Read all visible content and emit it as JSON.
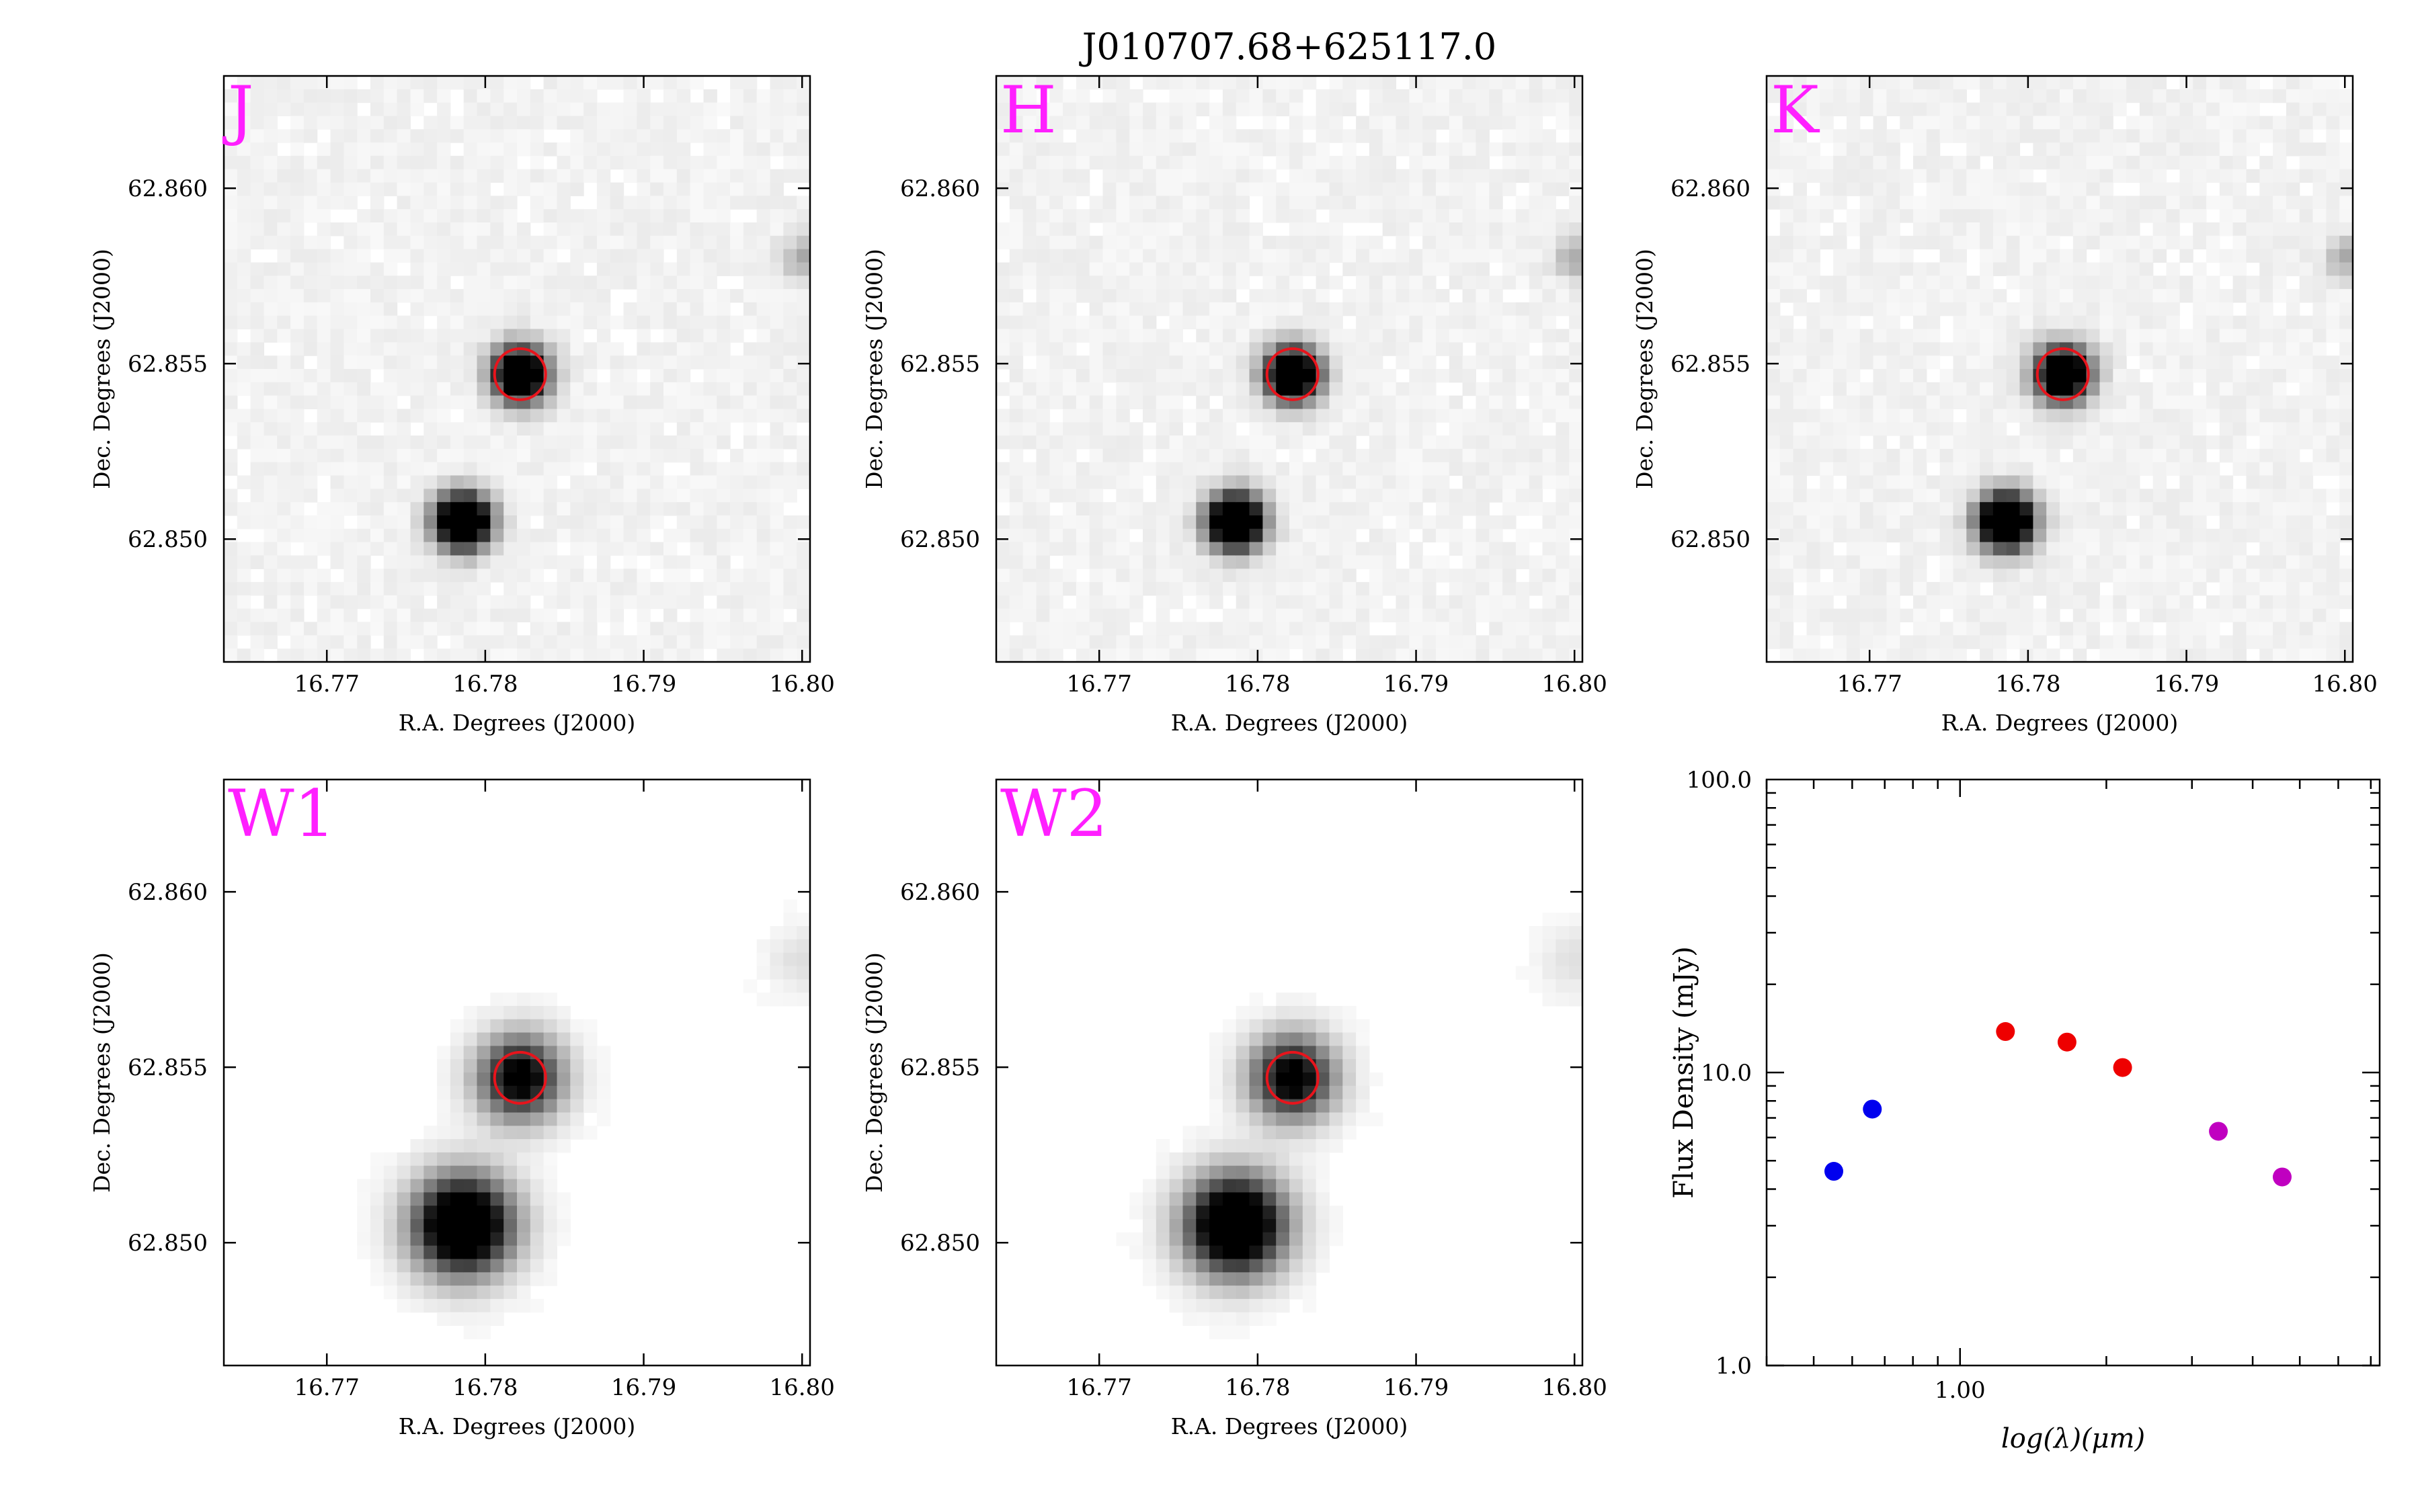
{
  "title": "J010707.68+625117.0",
  "colors": {
    "band_label": "#ff1fff",
    "aperture": "#e8141c",
    "sed_blue": "#0000ee",
    "sed_red": "#ee0000",
    "sed_magenta": "#c000c0"
  },
  "image_axes": {
    "xlabel": "R.A. Degrees (J2000)",
    "ylabel": "Dec. Degrees (J2000)",
    "xlim": [
      16.7635,
      16.8005
    ],
    "ylim": [
      62.8465,
      62.8632
    ],
    "xticks": [
      {
        "value": 16.77,
        "label": "16.77"
      },
      {
        "value": 16.78,
        "label": "16.78"
      },
      {
        "value": 16.79,
        "label": "16.79"
      },
      {
        "value": 16.8,
        "label": "16.80"
      }
    ],
    "yticks": [
      {
        "value": 62.85,
        "label": "62.850"
      },
      {
        "value": 62.855,
        "label": "62.855"
      },
      {
        "value": 62.86,
        "label": "62.860"
      }
    ]
  },
  "panels": [
    {
      "band": "J",
      "type": "nir"
    },
    {
      "band": "H",
      "type": "nir"
    },
    {
      "band": "K",
      "type": "nir"
    },
    {
      "band": "W1",
      "type": "wise"
    },
    {
      "band": "W2",
      "type": "wise"
    }
  ],
  "sources": {
    "target": {
      "ra": 16.7822,
      "dec": 62.8547
    },
    "neighbor": {
      "ra": 16.7786,
      "dec": 62.8505
    }
  },
  "chart_data": {
    "type": "scatter",
    "title": "",
    "xlabel": "log(λ)(μm)",
    "ylabel": "Flux Density (mJy)",
    "xscale": "log",
    "yscale": "log",
    "xlim": [
      0.4,
      7.3
    ],
    "ylim": [
      1.0,
      100.0
    ],
    "xtick_labels": [
      {
        "value": 1.0,
        "label": "1.00"
      }
    ],
    "ytick_labels": [
      {
        "value": 1.0,
        "label": "1.0"
      },
      {
        "value": 10.0,
        "label": "10.0"
      },
      {
        "value": 100.0,
        "label": "100.0"
      }
    ],
    "series": [
      {
        "color": "#0000ee",
        "points": [
          {
            "x": 0.55,
            "y": 4.6
          },
          {
            "x": 0.66,
            "y": 7.5
          }
        ]
      },
      {
        "color": "#ee0000",
        "points": [
          {
            "x": 1.24,
            "y": 13.8
          },
          {
            "x": 1.66,
            "y": 12.7
          },
          {
            "x": 2.16,
            "y": 10.4
          }
        ]
      },
      {
        "color": "#c000c0",
        "points": [
          {
            "x": 3.4,
            "y": 6.3
          },
          {
            "x": 4.6,
            "y": 4.4
          }
        ]
      }
    ]
  }
}
